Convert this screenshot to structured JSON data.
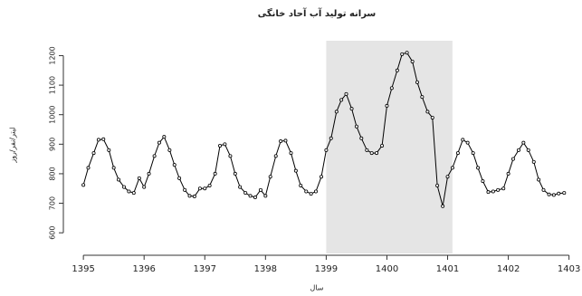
{
  "chart_data": {
    "type": "line",
    "title": "سرانه تولید آب آحاد خانگی",
    "x_label": "سال",
    "y_label": "لیتر/نفر/روز",
    "x": [
      1395.0,
      1395.08,
      1395.17,
      1395.25,
      1395.33,
      1395.42,
      1395.5,
      1395.58,
      1395.67,
      1395.75,
      1395.83,
      1395.92,
      1396.0,
      1396.08,
      1396.17,
      1396.25,
      1396.33,
      1396.42,
      1396.5,
      1396.58,
      1396.67,
      1396.75,
      1396.83,
      1396.92,
      1397.0,
      1397.08,
      1397.17,
      1397.25,
      1397.33,
      1397.42,
      1397.5,
      1397.58,
      1397.67,
      1397.75,
      1397.83,
      1397.92,
      1398.0,
      1398.08,
      1398.17,
      1398.25,
      1398.33,
      1398.42,
      1398.5,
      1398.58,
      1398.67,
      1398.75,
      1398.83,
      1398.92,
      1399.0,
      1399.08,
      1399.17,
      1399.25,
      1399.33,
      1399.42,
      1399.5,
      1399.58,
      1399.67,
      1399.75,
      1399.83,
      1399.92,
      1400.0,
      1400.08,
      1400.17,
      1400.25,
      1400.33,
      1400.42,
      1400.5,
      1400.58,
      1400.67,
      1400.75,
      1400.83,
      1400.92,
      1401.0,
      1401.08,
      1401.17,
      1401.25,
      1401.33,
      1401.42,
      1401.5,
      1401.58,
      1401.67,
      1401.75,
      1401.83,
      1401.92,
      1402.0,
      1402.08,
      1402.17,
      1402.25,
      1402.33,
      1402.42,
      1402.5,
      1402.58,
      1402.67,
      1402.75,
      1402.83,
      1402.92
    ],
    "series": [
      {
        "color": "#000000",
        "values": [
          762,
          820,
          870,
          915,
          917,
          880,
          820,
          780,
          755,
          740,
          735,
          785,
          755,
          800,
          860,
          905,
          925,
          880,
          830,
          785,
          745,
          725,
          723,
          750,
          750,
          760,
          800,
          895,
          900,
          860,
          800,
          755,
          735,
          725,
          720,
          745,
          725,
          790,
          860,
          910,
          912,
          870,
          810,
          760,
          740,
          732,
          740,
          790,
          880,
          920,
          1010,
          1050,
          1070,
          1020,
          960,
          920,
          880,
          870,
          870,
          895,
          1030,
          1090,
          1150,
          1205,
          1210,
          1180,
          1110,
          1060,
          1010,
          990,
          760,
          690,
          790,
          820,
          870,
          915,
          905,
          870,
          820,
          775,
          738,
          740,
          745,
          750,
          800,
          850,
          880,
          905,
          880,
          840,
          780,
          745,
          730,
          728,
          733,
          735
        ]
      }
    ],
    "shaded_x": [
      1399,
      1401.08
    ],
    "xlim": [
      1394.67,
      1403.02
    ],
    "ylim": [
      530,
      1275
    ],
    "xticks": [
      1395,
      1396,
      1397,
      1398,
      1399,
      1400,
      1401,
      1402,
      1403
    ],
    "yticks": [
      600,
      700,
      800,
      900,
      1000,
      1100,
      1200
    ]
  }
}
